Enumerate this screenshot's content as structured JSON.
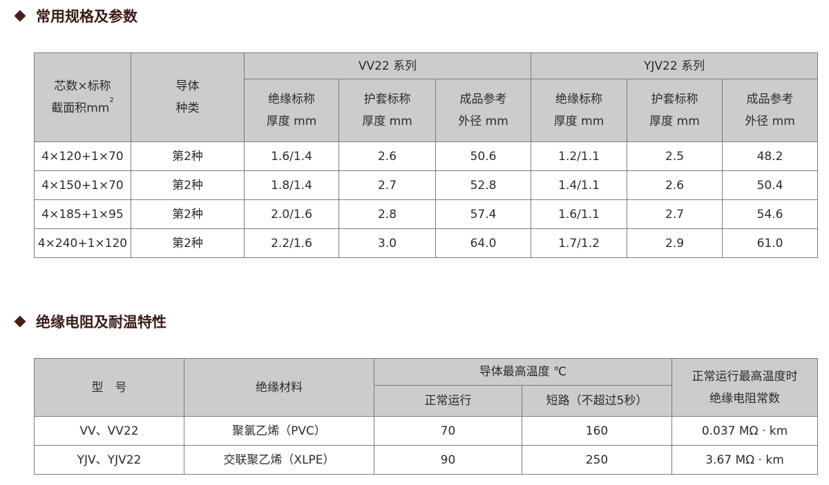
{
  "section1": {
    "title": "常用规格及参数",
    "headers": {
      "spec_line1": "芯数×标称",
      "spec_line2": "截面积mm",
      "spec_sup": "2",
      "conductor_line1": "导体",
      "conductor_line2": "种类",
      "vv22": "VV22 系列",
      "yjv22": "YJV22 系列",
      "sub": [
        [
          "绝缘标称",
          "厚度 mm"
        ],
        [
          "护套标称",
          "厚度 mm"
        ],
        [
          "成品参考",
          "外径 mm"
        ],
        [
          "绝缘标称",
          "厚度 mm"
        ],
        [
          "护套标称",
          "厚度 mm"
        ],
        [
          "成品参考",
          "外径 mm"
        ]
      ]
    },
    "rows": [
      [
        "4×120+1×70",
        "第2种",
        "1.6/1.4",
        "2.6",
        "50.6",
        "1.2/1.1",
        "2.5",
        "48.2"
      ],
      [
        "4×150+1×70",
        "第2种",
        "1.8/1.4",
        "2.7",
        "52.8",
        "1.4/1.1",
        "2.6",
        "50.4"
      ],
      [
        "4×185+1×95",
        "第2种",
        "2.0/1.6",
        "2.8",
        "57.4",
        "1.6/1.1",
        "2.7",
        "54.6"
      ],
      [
        "4×240+1×120",
        "第2种",
        "2.2/1.6",
        "3.0",
        "64.0",
        "1.7/1.2",
        "2.9",
        "61.0"
      ]
    ]
  },
  "section2": {
    "title": "绝缘电阻及耐温特性",
    "headers": {
      "model": "型　号",
      "material": "绝缘材料",
      "max_temp": "导体最高温度 ℃",
      "normal": "正常运行",
      "short": "短路（不超过5秒）",
      "resist_line1": "正常运行最高温度时",
      "resist_line2": "绝缘电阻常数"
    },
    "rows": [
      [
        "VV、VV22",
        "聚氯乙烯（PVC）",
        "70",
        "160",
        "0.037 MΩ · km"
      ],
      [
        "YJV、YJV22",
        "交联聚乙烯（XLPE）",
        "90",
        "250",
        "3.67 MΩ · km"
      ]
    ]
  }
}
